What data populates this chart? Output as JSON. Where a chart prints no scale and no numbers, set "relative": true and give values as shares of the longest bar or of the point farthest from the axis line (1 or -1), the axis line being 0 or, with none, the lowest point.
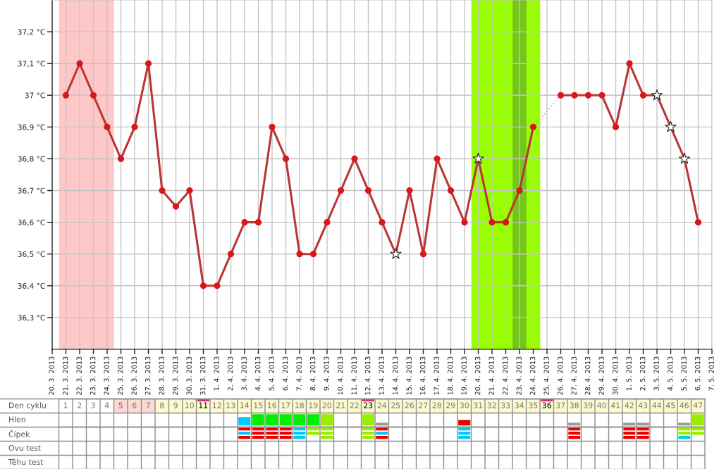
{
  "chart_data": [
    {
      "type": "line",
      "categories": [
        "20. 3. 2013",
        "21. 3. 2013",
        "22. 3. 2013",
        "23. 3. 2013",
        "24. 3. 2013",
        "25. 3. 2013",
        "26. 3. 2013",
        "27. 3. 2013",
        "28. 3. 2013",
        "29. 3. 2013",
        "30. 3. 2013",
        "31. 3. 2013",
        "1. 4. 2013",
        "2. 4. 2013",
        "3. 4. 2013",
        "4. 4. 2013",
        "5. 4. 2013",
        "6. 4. 2013",
        "7. 4. 2013",
        "8. 4. 2013",
        "9. 4. 2013",
        "10. 4. 2013",
        "11. 4. 2013",
        "12. 4. 2013",
        "13. 4. 2013",
        "14. 4. 2013",
        "15. 4. 2013",
        "16. 4. 2013",
        "17. 4. 2013",
        "18. 4. 2013",
        "19. 4. 2013",
        "20. 4. 2013",
        "21. 4. 2013",
        "22. 4. 2013",
        "23. 4. 2013",
        "24. 4. 2013",
        "25. 4. 2013",
        "26. 4. 2013",
        "27. 4. 2013",
        "28. 4. 2013",
        "29. 4. 2013",
        "30. 4. 2013",
        "1. 5. 2013",
        "2. 5. 2013",
        "3. 5. 2013",
        "4. 5. 2013",
        "5. 5. 2013",
        "6. 5. 2013",
        "7. 5. 2013"
      ],
      "ylim": [
        36.2,
        37.3
      ],
      "yticks": [
        {
          "value": 36.3,
          "label": "36,3 °C"
        },
        {
          "value": 36.4,
          "label": "36,4 °C"
        },
        {
          "value": 36.5,
          "label": "36,5 °C"
        },
        {
          "value": 36.6,
          "label": "36,6 °C"
        },
        {
          "value": 36.7,
          "label": "36,7 °C"
        },
        {
          "value": 36.8,
          "label": "36,8 °C"
        },
        {
          "value": 36.9,
          "label": "36,9 °C"
        },
        {
          "value": 37.0,
          "label": "37 °C"
        },
        {
          "value": 37.1,
          "label": "37,1 °C"
        },
        {
          "value": 37.2,
          "label": "37,2 °C"
        }
      ],
      "grid": true,
      "bands": [
        {
          "axis": "x",
          "from": "21. 3. 2013",
          "to": "24. 3. 2013",
          "color": "#ffc8c8"
        },
        {
          "axis": "x",
          "from": "20. 4. 2013",
          "to": "24. 4. 2013",
          "color": "#99ff00"
        },
        {
          "axis": "x",
          "from": "23. 4. 2013",
          "to": "23. 4. 2013",
          "color": "#76c51e"
        }
      ],
      "series": [
        {
          "type": "line",
          "color": "#bb3535",
          "marker": "none",
          "line_style": "solid",
          "values": [
            null,
            37.0,
            37.1,
            37.0,
            36.9,
            36.8,
            36.9,
            37.1,
            36.7,
            36.65,
            36.7,
            36.4,
            36.4,
            36.5,
            36.6,
            36.6,
            36.9,
            36.8,
            36.5,
            36.5,
            36.6,
            36.7,
            36.8,
            36.7,
            36.6,
            36.5,
            36.7,
            36.5,
            36.8,
            36.7,
            36.6,
            36.8,
            36.6,
            36.6,
            36.7,
            36.9,
            null,
            37.0,
            37.0,
            37.0,
            37.0,
            36.9,
            37.1,
            37.0,
            37.0,
            36.9,
            36.8,
            36.6,
            null
          ]
        },
        {
          "type": "scatter",
          "color": "#d81818",
          "marker": "circle",
          "values": [
            null,
            37.0,
            37.1,
            37.0,
            36.9,
            36.8,
            36.9,
            37.1,
            36.7,
            36.65,
            36.7,
            36.4,
            36.4,
            36.5,
            36.6,
            36.6,
            36.9,
            36.8,
            36.5,
            36.5,
            36.6,
            36.7,
            36.8,
            36.7,
            36.6,
            null,
            36.7,
            36.5,
            36.8,
            36.7,
            36.6,
            null,
            36.6,
            36.6,
            36.7,
            36.9,
            null,
            37.0,
            37.0,
            37.0,
            37.0,
            36.9,
            37.1,
            37.0,
            null,
            null,
            null,
            36.6,
            null
          ]
        },
        {
          "type": "line",
          "color": "#e6a0a0",
          "marker": "none",
          "line_style": "dotted",
          "x": [
            "24. 4. 2013",
            "26. 4. 2013"
          ],
          "values": [
            36.9,
            37.0
          ]
        },
        {
          "type": "scatter",
          "color": "#ffffff",
          "marker": "star",
          "x": [
            "14. 4. 2013",
            "20. 4. 2013",
            "3. 5. 2013",
            "4. 5. 2013",
            "5. 5. 2013"
          ],
          "values": [
            36.5,
            36.8,
            37.0,
            36.9,
            36.8
          ]
        }
      ]
    },
    {
      "type": "bar",
      "relative": true,
      "tick_labels": "x",
      "xlabel": "Den cyklu",
      "color": "#d6337f",
      "categories": [
        "1",
        "2",
        "3",
        "4",
        "5",
        "6",
        "7",
        "8",
        "9",
        "10",
        "11",
        "12",
        "13",
        "14",
        "15",
        "16",
        "17",
        "18",
        "19",
        "20",
        "21",
        "22",
        "23",
        "24",
        "25",
        "26",
        "27",
        "28",
        "29",
        "30",
        "31",
        "32",
        "33",
        "34",
        "35",
        "36",
        "37",
        "38",
        "39",
        "40",
        "41",
        "42",
        "43",
        "44",
        "45",
        "46",
        "47"
      ],
      "bands": [
        {
          "axis": "x",
          "from": "5",
          "to": "7",
          "color": "#fcd9d3"
        },
        {
          "axis": "x",
          "from": "8",
          "to": "47",
          "color": "#fdf9d0"
        }
      ],
      "values": [
        null,
        null,
        null,
        null,
        null,
        null,
        null,
        null,
        null,
        null,
        -1,
        null,
        null,
        null,
        null,
        null,
        null,
        null,
        null,
        null,
        null,
        null,
        -1,
        null,
        null,
        null,
        null,
        null,
        null,
        null,
        null,
        null,
        null,
        null,
        null,
        -1,
        null,
        null,
        null,
        null,
        null,
        null,
        null,
        null,
        null,
        null,
        null
      ]
    },
    {
      "type": "bar",
      "relative": true,
      "tick_labels": false,
      "ylabel": "Hlen",
      "categories": [
        "1",
        "2",
        "3",
        "4",
        "5",
        "6",
        "7",
        "8",
        "9",
        "10",
        "11",
        "12",
        "13",
        "14",
        "15",
        "16",
        "17",
        "18",
        "19",
        "20",
        "21",
        "22",
        "23",
        "24",
        "25",
        "26",
        "27",
        "28",
        "29",
        "30",
        "31",
        "32",
        "33",
        "34",
        "35",
        "36",
        "37",
        "38",
        "39",
        "40",
        "41",
        "42",
        "43",
        "44",
        "45",
        "46",
        "47"
      ],
      "values": [
        null,
        null,
        null,
        null,
        null,
        null,
        null,
        null,
        null,
        null,
        null,
        null,
        null,
        0.75,
        1,
        1,
        1,
        1,
        1,
        1,
        null,
        null,
        1,
        0.25,
        null,
        null,
        null,
        null,
        null,
        0.5,
        null,
        null,
        null,
        null,
        null,
        null,
        null,
        0.25,
        null,
        null,
        null,
        0.25,
        0.25,
        null,
        null,
        0.25,
        1
      ],
      "colors": [
        null,
        null,
        null,
        null,
        null,
        null,
        null,
        null,
        null,
        null,
        null,
        null,
        null,
        "#00c8f8",
        "#00ee00",
        "#00ee00",
        "#00ee00",
        "#00ee00",
        "#00ee00",
        "#99ee00",
        null,
        null,
        "#99ee00",
        "#999999",
        null,
        null,
        null,
        null,
        null,
        "#ee0000",
        null,
        null,
        null,
        null,
        null,
        null,
        null,
        "#999999",
        null,
        null,
        null,
        "#999999",
        "#999999",
        null,
        null,
        "#999999",
        "#99ee00"
      ]
    },
    {
      "type": "bar",
      "stacked": true,
      "relative": true,
      "tick_labels": false,
      "ylabel": "Čípek",
      "categories": [
        "1",
        "2",
        "3",
        "4",
        "5",
        "6",
        "7",
        "8",
        "9",
        "10",
        "11",
        "12",
        "13",
        "14",
        "15",
        "16",
        "17",
        "18",
        "19",
        "20",
        "21",
        "22",
        "23",
        "24",
        "25",
        "26",
        "27",
        "28",
        "29",
        "30",
        "31",
        "32",
        "33",
        "34",
        "35",
        "36",
        "37",
        "38",
        "39",
        "40",
        "41",
        "42",
        "43",
        "44",
        "45",
        "46",
        "47"
      ],
      "series": [
        {
          "values": [
            null,
            null,
            null,
            null,
            null,
            null,
            null,
            null,
            null,
            null,
            null,
            null,
            null,
            -0.33,
            -0.33,
            -0.33,
            -0.33,
            -0.33,
            -0.33,
            -0.33,
            null,
            null,
            -0.33,
            -0.33,
            null,
            null,
            null,
            null,
            null,
            -0.33,
            null,
            null,
            null,
            null,
            null,
            null,
            null,
            -0.33,
            null,
            null,
            null,
            -0.33,
            -0.33,
            null,
            null,
            -0.33,
            -0.33
          ],
          "colors": [
            null,
            null,
            null,
            null,
            null,
            null,
            null,
            null,
            null,
            null,
            null,
            null,
            null,
            "#ee0000",
            "#ee0000",
            "#ee0000",
            "#ee0000",
            "#00c8f8",
            "#99ee00",
            "#99ee00",
            null,
            null,
            "#99ee00",
            "#ee0000",
            null,
            null,
            null,
            null,
            null,
            "#00c8f8",
            null,
            null,
            null,
            null,
            null,
            null,
            null,
            "#ee0000",
            null,
            null,
            null,
            "#ee0000",
            "#ee0000",
            null,
            null,
            "#99ee00",
            "#99ee00"
          ]
        },
        {
          "values": [
            null,
            null,
            null,
            null,
            null,
            null,
            null,
            null,
            null,
            null,
            null,
            null,
            null,
            -0.34,
            -0.34,
            -0.34,
            -0.34,
            -0.34,
            -0.34,
            -0.34,
            null,
            null,
            -0.34,
            -0.34,
            null,
            null,
            null,
            null,
            null,
            -0.34,
            null,
            null,
            null,
            null,
            null,
            null,
            null,
            -0.34,
            null,
            null,
            null,
            -0.34,
            -0.34,
            null,
            null,
            -0.34,
            -0.34
          ],
          "colors": [
            null,
            null,
            null,
            null,
            null,
            null,
            null,
            null,
            null,
            null,
            null,
            null,
            null,
            "#00c8f8",
            "#ee0000",
            "#ee0000",
            "#ee0000",
            "#00c8f8",
            "#99ee00",
            "#99ee00",
            null,
            null,
            "#99ee00",
            "#00c8f8",
            null,
            null,
            null,
            null,
            null,
            "#00c8f8",
            null,
            null,
            null,
            null,
            null,
            null,
            null,
            "#ee0000",
            null,
            null,
            null,
            "#ee0000",
            "#ee0000",
            null,
            null,
            "#99ee00",
            "#99ee00"
          ]
        },
        {
          "values": [
            null,
            null,
            null,
            null,
            null,
            null,
            null,
            null,
            null,
            null,
            null,
            null,
            null,
            -0.33,
            -0.33,
            -0.33,
            -0.33,
            -0.33,
            null,
            -0.33,
            null,
            null,
            -0.33,
            -0.33,
            null,
            null,
            null,
            null,
            null,
            -0.33,
            null,
            null,
            null,
            null,
            null,
            null,
            null,
            -0.33,
            null,
            null,
            null,
            -0.33,
            -0.33,
            null,
            null,
            -0.33,
            null
          ],
          "colors": [
            null,
            null,
            null,
            null,
            null,
            null,
            null,
            null,
            null,
            null,
            null,
            null,
            null,
            "#ee0000",
            "#ee0000",
            "#ee0000",
            "#ee0000",
            "#00c8f8",
            null,
            "#99ee00",
            null,
            null,
            "#99ee00",
            "#ee0000",
            null,
            null,
            null,
            null,
            null,
            "#00c8f8",
            null,
            null,
            null,
            null,
            null,
            null,
            null,
            "#ee0000",
            null,
            null,
            null,
            "#ee0000",
            "#ee0000",
            null,
            null,
            "#00c8f8",
            null
          ]
        }
      ]
    },
    {
      "type": "other",
      "annotations": [
        "Ovu test",
        "Těhu test"
      ]
    }
  ]
}
